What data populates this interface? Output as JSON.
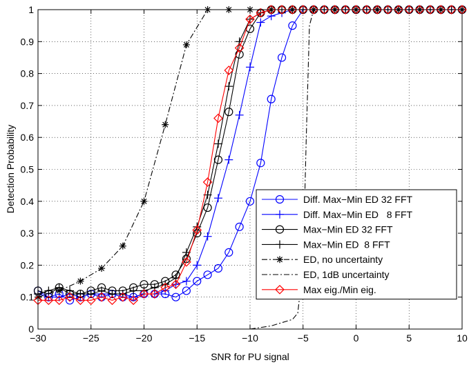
{
  "chart_data": {
    "type": "line",
    "title": "",
    "xlabel": "SNR for PU signal",
    "ylabel": "Detection Probability",
    "xlim": [
      -30,
      10
    ],
    "ylim": [
      0,
      1
    ],
    "xticks": [
      -30,
      -25,
      -20,
      -15,
      -10,
      -5,
      0,
      5,
      10
    ],
    "yticks": [
      0,
      0.1,
      0.2,
      0.3,
      0.4,
      0.5,
      0.6,
      0.7,
      0.8,
      0.9,
      1
    ],
    "xtick_labels": [
      "−30",
      "−25",
      "−20",
      "−15",
      "−10",
      "−5",
      "0",
      "5",
      "10"
    ],
    "ytick_labels": [
      "0",
      "0.1",
      "0.2",
      "0.3",
      "0.4",
      "0.5",
      "0.6",
      "0.7",
      "0.8",
      "0.9",
      "1"
    ],
    "grid": true,
    "legend_position": "lower-right",
    "series": [
      {
        "name": "Diff. Max−Min ED 32 FFT",
        "color": "#0000ff",
        "dash": "solid",
        "marker": "circle",
        "x": [
          -30,
          -29,
          -28,
          -27,
          -26,
          -25,
          -24,
          -23,
          -22,
          -21,
          -20,
          -19,
          -18,
          -17,
          -16,
          -15,
          -14,
          -13,
          -12,
          -11,
          -10,
          -9,
          -8,
          -7,
          -6,
          -5,
          -4,
          -3,
          -2,
          -1,
          0,
          1,
          2,
          3,
          4,
          5,
          6,
          7,
          8,
          9,
          10
        ],
        "y": [
          0.12,
          0.1,
          0.11,
          0.09,
          0.1,
          0.11,
          0.1,
          0.11,
          0.1,
          0.1,
          0.11,
          0.11,
          0.11,
          0.1,
          0.12,
          0.15,
          0.17,
          0.19,
          0.24,
          0.32,
          0.4,
          0.52,
          0.72,
          0.85,
          0.95,
          1,
          1,
          1,
          1,
          1,
          1,
          1,
          1,
          1,
          1,
          1,
          1,
          1,
          1,
          1,
          1
        ]
      },
      {
        "name": "Diff. Max−Min ED   8 FFT",
        "color": "#0000ff",
        "dash": "solid",
        "marker": "plus",
        "x": [
          -30,
          -29,
          -28,
          -27,
          -26,
          -25,
          -24,
          -23,
          -22,
          -21,
          -20,
          -19,
          -18,
          -17,
          -16,
          -15,
          -14,
          -13,
          -12,
          -11,
          -10,
          -9,
          -8,
          -7,
          -6,
          -5,
          -4,
          -3,
          -2,
          -1,
          0,
          1,
          2,
          3,
          4,
          5,
          6,
          7,
          8,
          9,
          10
        ],
        "y": [
          0.11,
          0.1,
          0.1,
          0.11,
          0.1,
          0.11,
          0.11,
          0.11,
          0.11,
          0.1,
          0.11,
          0.11,
          0.12,
          0.14,
          0.15,
          0.2,
          0.29,
          0.41,
          0.53,
          0.67,
          0.82,
          0.96,
          0.98,
          0.99,
          1,
          1,
          1,
          1,
          1,
          1,
          1,
          1,
          1,
          1,
          1,
          1,
          1,
          1,
          1,
          1,
          1
        ]
      },
      {
        "name": "Max−Min ED 32 FFT",
        "color": "#000000",
        "dash": "solid",
        "marker": "circle",
        "x": [
          -30,
          -29,
          -28,
          -27,
          -26,
          -25,
          -24,
          -23,
          -22,
          -21,
          -20,
          -19,
          -18,
          -17,
          -16,
          -15,
          -14,
          -13,
          -12,
          -11,
          -10,
          -9,
          -8,
          -7,
          -6,
          -5,
          -4,
          -3,
          -2,
          -1,
          0,
          1,
          2,
          3,
          4,
          5,
          6,
          7,
          8,
          9,
          10
        ],
        "y": [
          0.12,
          0.11,
          0.13,
          0.11,
          0.11,
          0.12,
          0.13,
          0.12,
          0.12,
          0.13,
          0.14,
          0.14,
          0.15,
          0.17,
          0.22,
          0.3,
          0.38,
          0.53,
          0.68,
          0.86,
          0.94,
          0.99,
          1,
          1,
          1,
          1,
          1,
          1,
          1,
          1,
          1,
          1,
          1,
          1,
          1,
          1,
          1,
          1,
          1,
          1,
          1
        ]
      },
      {
        "name": "Max−Min ED  8 FFT",
        "color": "#000000",
        "dash": "solid",
        "marker": "plus",
        "x": [
          -30,
          -29,
          -28,
          -27,
          -26,
          -25,
          -24,
          -23,
          -22,
          -21,
          -20,
          -19,
          -18,
          -17,
          -16,
          -15,
          -14,
          -13,
          -12,
          -11,
          -10,
          -9,
          -8,
          -7,
          -6,
          -5,
          -4,
          -3,
          -2,
          -1,
          0,
          1,
          2,
          3,
          4,
          5,
          6,
          7,
          8,
          9,
          10
        ],
        "y": [
          0.11,
          0.12,
          0.13,
          0.12,
          0.11,
          0.11,
          0.12,
          0.11,
          0.11,
          0.12,
          0.12,
          0.13,
          0.14,
          0.16,
          0.24,
          0.32,
          0.42,
          0.58,
          0.76,
          0.9,
          0.97,
          0.99,
          1,
          1,
          1,
          1,
          1,
          1,
          1,
          1,
          1,
          1,
          1,
          1,
          1,
          1,
          1,
          1,
          1,
          1,
          1
        ]
      },
      {
        "name": "ED, no uncertainty",
        "color": "#000000",
        "dash": "dashdot",
        "marker": "asterisk",
        "x": [
          -30,
          -28,
          -26,
          -24,
          -22,
          -20,
          -18,
          -16,
          -14,
          -12,
          -10,
          -8,
          -6,
          -4,
          -2,
          0,
          2,
          4,
          6,
          8,
          10
        ],
        "y": [
          0.1,
          0.12,
          0.15,
          0.19,
          0.26,
          0.4,
          0.64,
          0.89,
          1,
          1,
          1,
          1,
          1,
          1,
          1,
          1,
          1,
          1,
          1,
          1,
          1
        ]
      },
      {
        "name": "ED, 1dB uncertainty",
        "color": "#000000",
        "dash": "dashdot",
        "marker": "none",
        "x": [
          -10,
          -9,
          -8,
          -7,
          -6,
          -5.5,
          -5,
          -4.7,
          -4.4,
          -4,
          -3.5,
          -3,
          0,
          10
        ],
        "y": [
          0,
          0.005,
          0.01,
          0.02,
          0.03,
          0.05,
          0.2,
          0.6,
          0.95,
          1,
          1,
          1,
          1,
          1
        ]
      },
      {
        "name": "Max eig./Min eig.",
        "color": "#ff0000",
        "dash": "solid",
        "marker": "diamond",
        "x": [
          -30,
          -29,
          -28,
          -27,
          -26,
          -25,
          -24,
          -23,
          -22,
          -21,
          -20,
          -19,
          -18,
          -17,
          -16,
          -15,
          -14,
          -13,
          -12,
          -11,
          -10,
          -9,
          -8,
          -7,
          -6,
          -5,
          -4,
          -3,
          -2,
          -1,
          0,
          1,
          2,
          3,
          4,
          5,
          6,
          7,
          8,
          9,
          10
        ],
        "y": [
          0.09,
          0.09,
          0.09,
          0.1,
          0.09,
          0.09,
          0.1,
          0.09,
          0.1,
          0.09,
          0.11,
          0.11,
          0.13,
          0.14,
          0.21,
          0.31,
          0.46,
          0.66,
          0.81,
          0.88,
          0.97,
          0.99,
          1,
          1,
          1,
          1,
          1,
          1,
          1,
          1,
          1,
          1,
          1,
          1,
          1,
          1,
          1,
          1,
          1,
          1,
          1
        ]
      }
    ]
  }
}
